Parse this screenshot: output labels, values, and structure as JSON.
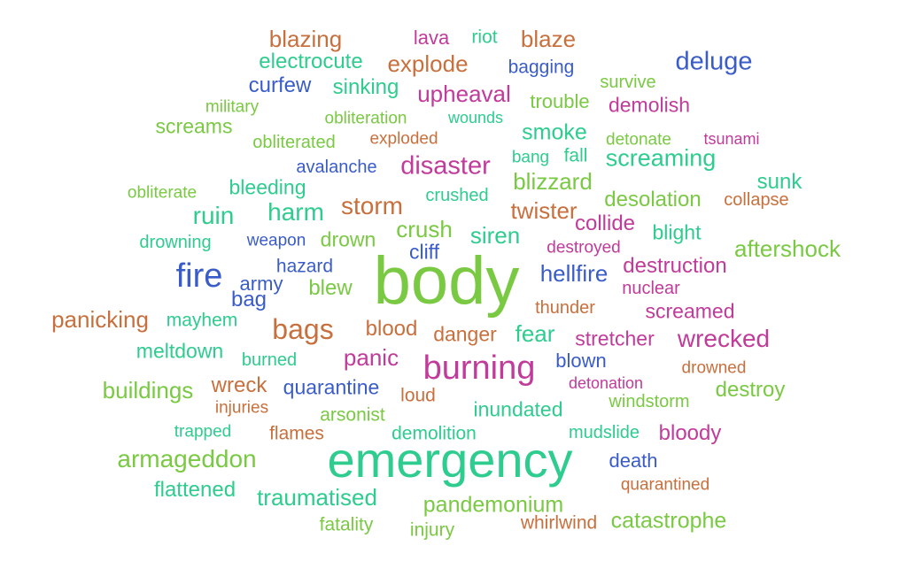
{
  "colors": {
    "green": "#7ac943",
    "teal": "#2ecc8f",
    "orange": "#c8703d",
    "magenta": "#c03b9a",
    "blue": "#3a5cc8"
  },
  "words": [
    {
      "text": "blazing",
      "color": "orange"
    },
    {
      "text": "lava",
      "color": "magenta"
    },
    {
      "text": "riot",
      "color": "teal"
    },
    {
      "text": "blaze",
      "color": "orange"
    },
    {
      "text": "electrocute",
      "color": "teal"
    },
    {
      "text": "explode",
      "color": "orange"
    },
    {
      "text": "bagging",
      "color": "blue"
    },
    {
      "text": "deluge",
      "color": "blue"
    },
    {
      "text": "curfew",
      "color": "blue"
    },
    {
      "text": "sinking",
      "color": "teal"
    },
    {
      "text": "upheaval",
      "color": "magenta"
    },
    {
      "text": "survive",
      "color": "green"
    },
    {
      "text": "military",
      "color": "green"
    },
    {
      "text": "trouble",
      "color": "green"
    },
    {
      "text": "demolish",
      "color": "magenta"
    },
    {
      "text": "screams",
      "color": "green"
    },
    {
      "text": "obliteration",
      "color": "green"
    },
    {
      "text": "wounds",
      "color": "teal"
    },
    {
      "text": "smoke",
      "color": "teal"
    },
    {
      "text": "obliterated",
      "color": "green"
    },
    {
      "text": "exploded",
      "color": "orange"
    },
    {
      "text": "detonate",
      "color": "green"
    },
    {
      "text": "tsunami",
      "color": "magenta"
    },
    {
      "text": "disaster",
      "color": "magenta"
    },
    {
      "text": "bang",
      "color": "teal"
    },
    {
      "text": "fall",
      "color": "teal"
    },
    {
      "text": "screaming",
      "color": "teal"
    },
    {
      "text": "avalanche",
      "color": "blue"
    },
    {
      "text": "blizzard",
      "color": "green"
    },
    {
      "text": "sunk",
      "color": "teal"
    },
    {
      "text": "obliterate",
      "color": "green"
    },
    {
      "text": "bleeding",
      "color": "teal"
    },
    {
      "text": "crushed",
      "color": "teal"
    },
    {
      "text": "desolation",
      "color": "green"
    },
    {
      "text": "collapse",
      "color": "orange"
    },
    {
      "text": "ruin",
      "color": "teal"
    },
    {
      "text": "harm",
      "color": "teal"
    },
    {
      "text": "storm",
      "color": "orange"
    },
    {
      "text": "twister",
      "color": "orange"
    },
    {
      "text": "crush",
      "color": "green"
    },
    {
      "text": "collide",
      "color": "magenta"
    },
    {
      "text": "blight",
      "color": "teal"
    },
    {
      "text": "drowning",
      "color": "teal"
    },
    {
      "text": "weapon",
      "color": "blue"
    },
    {
      "text": "drown",
      "color": "green"
    },
    {
      "text": "siren",
      "color": "teal"
    },
    {
      "text": "cliff",
      "color": "blue"
    },
    {
      "text": "destroyed",
      "color": "magenta"
    },
    {
      "text": "aftershock",
      "color": "green"
    },
    {
      "text": "fire",
      "color": "blue"
    },
    {
      "text": "hazard",
      "color": "blue"
    },
    {
      "text": "body",
      "color": "green"
    },
    {
      "text": "hellfire",
      "color": "blue"
    },
    {
      "text": "destruction",
      "color": "magenta"
    },
    {
      "text": "army",
      "color": "blue"
    },
    {
      "text": "blew",
      "color": "green"
    },
    {
      "text": "nuclear",
      "color": "magenta"
    },
    {
      "text": "bag",
      "color": "blue"
    },
    {
      "text": "panicking",
      "color": "orange"
    },
    {
      "text": "mayhem",
      "color": "teal"
    },
    {
      "text": "thunder",
      "color": "orange"
    },
    {
      "text": "screamed",
      "color": "magenta"
    },
    {
      "text": "bags",
      "color": "orange"
    },
    {
      "text": "blood",
      "color": "orange"
    },
    {
      "text": "danger",
      "color": "orange"
    },
    {
      "text": "fear",
      "color": "teal"
    },
    {
      "text": "stretcher",
      "color": "magenta"
    },
    {
      "text": "wrecked",
      "color": "magenta"
    },
    {
      "text": "meltdown",
      "color": "teal"
    },
    {
      "text": "panic",
      "color": "magenta"
    },
    {
      "text": "burned",
      "color": "teal"
    },
    {
      "text": "burning",
      "color": "magenta"
    },
    {
      "text": "blown",
      "color": "blue"
    },
    {
      "text": "drowned",
      "color": "orange"
    },
    {
      "text": "buildings",
      "color": "green"
    },
    {
      "text": "wreck",
      "color": "orange"
    },
    {
      "text": "quarantine",
      "color": "blue"
    },
    {
      "text": "detonation",
      "color": "magenta"
    },
    {
      "text": "destroy",
      "color": "green"
    },
    {
      "text": "injuries",
      "color": "orange"
    },
    {
      "text": "loud",
      "color": "orange"
    },
    {
      "text": "windstorm",
      "color": "green"
    },
    {
      "text": "arsonist",
      "color": "green"
    },
    {
      "text": "inundated",
      "color": "teal"
    },
    {
      "text": "trapped",
      "color": "teal"
    },
    {
      "text": "flames",
      "color": "orange"
    },
    {
      "text": "demolition",
      "color": "teal"
    },
    {
      "text": "mudslide",
      "color": "teal"
    },
    {
      "text": "bloody",
      "color": "magenta"
    },
    {
      "text": "armageddon",
      "color": "green"
    },
    {
      "text": "emergency",
      "color": "teal"
    },
    {
      "text": "death",
      "color": "blue"
    },
    {
      "text": "flattened",
      "color": "teal"
    },
    {
      "text": "quarantined",
      "color": "orange"
    },
    {
      "text": "traumatised",
      "color": "teal"
    },
    {
      "text": "pandemonium",
      "color": "green"
    },
    {
      "text": "fatality",
      "color": "green"
    },
    {
      "text": "injury",
      "color": "green"
    },
    {
      "text": "whirlwind",
      "color": "orange"
    },
    {
      "text": "catastrophe",
      "color": "green"
    }
  ]
}
